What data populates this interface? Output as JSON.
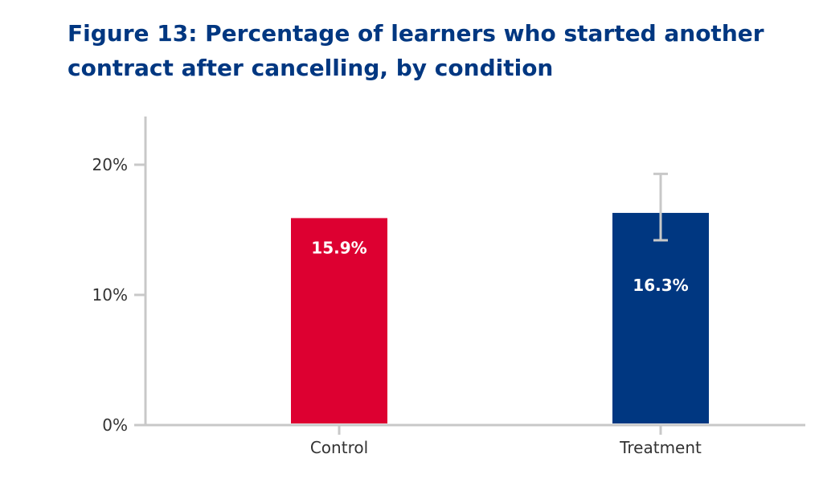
{
  "figure": {
    "title_line1": "Figure 13: Percentage of learners who started another",
    "title_line2": "contract after cancelling, by condition"
  },
  "chart_data": {
    "type": "bar",
    "title": "Figure 13: Percentage of learners who started another contract after cancelling, by condition",
    "xlabel": "",
    "ylabel": "",
    "categories": [
      "Control",
      "Treatment"
    ],
    "values": [
      15.9,
      16.3
    ],
    "value_labels": [
      "15.9%",
      "16.3%"
    ],
    "colors": [
      "#dd0031",
      "#003781"
    ],
    "error_bars": [
      null,
      {
        "low": 14.2,
        "high": 19.3
      }
    ],
    "ylim": [
      0,
      24
    ],
    "yticks": [
      0,
      10,
      20
    ],
    "ytick_labels": [
      "0%",
      "10%",
      "20%"
    ],
    "grid": false,
    "legend": "none"
  }
}
